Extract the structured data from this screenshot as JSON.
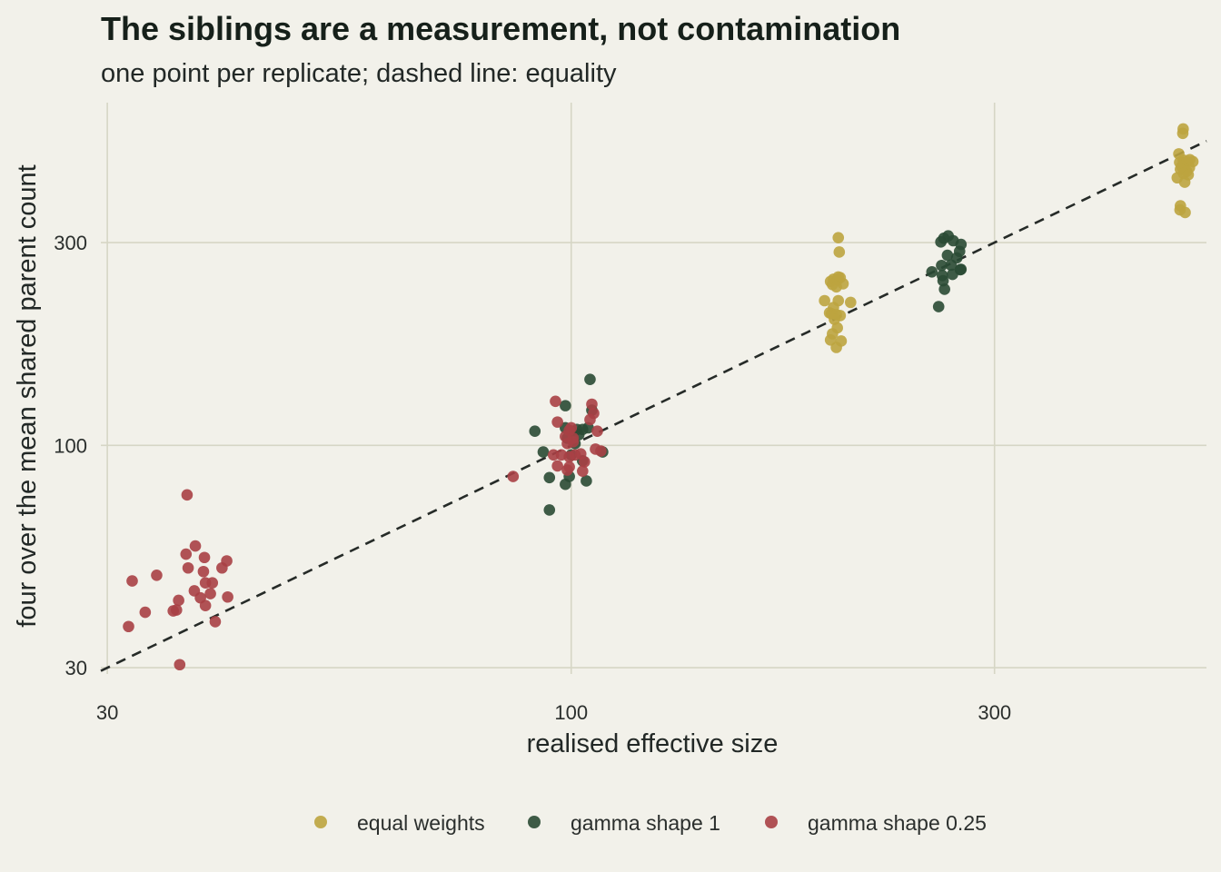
{
  "chart_data": {
    "type": "scatter",
    "title": "The siblings are a measurement, not contamination",
    "subtitle": "one point per replicate; dashed line: equality",
    "xlabel": "realised effective size",
    "ylabel": "four over the mean shared parent count",
    "x_scale": "log",
    "y_scale": "log",
    "xlim": [
      29.5,
      520
    ],
    "ylim": [
      29.0,
      640
    ],
    "x_ticks": [
      30,
      100,
      300
    ],
    "x_tick_labels": [
      "30",
      "100",
      "300"
    ],
    "y_ticks": [
      30,
      100,
      300
    ],
    "y_tick_labels": [
      "30",
      "100",
      "300"
    ],
    "grid": true,
    "legend_position": "bottom",
    "reference_line": "equality (y = x), dashed",
    "series": [
      {
        "name": "equal weights",
        "color": "#bda43f",
        "points": [
          [
            200.0,
            308.0
          ],
          [
            200.5,
            285.0
          ],
          [
            197.5,
            246.0
          ],
          [
            196.0,
            243.0
          ],
          [
            199.5,
            245.0
          ],
          [
            201.0,
            248.0
          ],
          [
            200.0,
            249.0
          ],
          [
            197.0,
            239.0
          ],
          [
            202.5,
            240.0
          ],
          [
            199.0,
            236.0
          ],
          [
            193.0,
            219.0
          ],
          [
            200.0,
            219.0
          ],
          [
            206.5,
            217.0
          ],
          [
            197.5,
            211.0
          ],
          [
            195.5,
            205.0
          ],
          [
            196.5,
            204.0
          ],
          [
            199.0,
            203.0
          ],
          [
            201.0,
            202.0
          ],
          [
            198.0,
            198.0
          ],
          [
            199.5,
            189.0
          ],
          [
            197.0,
            183.0
          ],
          [
            196.0,
            177.0
          ],
          [
            201.5,
            176.0
          ],
          [
            199.0,
            170.0
          ],
          [
            489.5,
            555.0
          ],
          [
            489.0,
            542.0
          ],
          [
            484.0,
            485.0
          ],
          [
            489.5,
            469.0
          ],
          [
            498.0,
            470.0
          ],
          [
            502.0,
            465.0
          ],
          [
            485.0,
            463.0
          ],
          [
            490.0,
            462.0
          ],
          [
            494.5,
            465.0
          ],
          [
            487.5,
            453.0
          ],
          [
            497.5,
            450.0
          ],
          [
            491.0,
            447.0
          ],
          [
            486.0,
            446.0
          ],
          [
            494.0,
            441.0
          ],
          [
            490.0,
            436.0
          ],
          [
            496.0,
            433.0
          ],
          [
            482.0,
            426.0
          ],
          [
            491.5,
            416.0
          ],
          [
            486.0,
            366.0
          ],
          [
            485.5,
            358.0
          ],
          [
            492.0,
            353.0
          ]
        ]
      },
      {
        "name": "gamma shape 1",
        "color": "#2a4a34",
        "points": [
          [
            105.0,
            143.0
          ],
          [
            98.5,
            124.0
          ],
          [
            105.5,
            121.0
          ],
          [
            91.0,
            108.0
          ],
          [
            98.5,
            110.0
          ],
          [
            101.5,
            109.0
          ],
          [
            103.0,
            109.0
          ],
          [
            104.5,
            110.0
          ],
          [
            100.0,
            108.0
          ],
          [
            102.0,
            106.0
          ],
          [
            99.0,
            104.0
          ],
          [
            101.0,
            101.0
          ],
          [
            93.0,
            96.5
          ],
          [
            108.5,
            96.5
          ],
          [
            100.0,
            95.0
          ],
          [
            103.0,
            92.0
          ],
          [
            94.5,
            84.0
          ],
          [
            99.5,
            84.5
          ],
          [
            98.5,
            81.0
          ],
          [
            104.0,
            82.5
          ],
          [
            94.5,
            70.5
          ],
          [
            266.0,
            311.0
          ],
          [
            263.0,
            307.0
          ],
          [
            269.5,
            303.0
          ],
          [
            261.0,
            301.0
          ],
          [
            275.0,
            297.0
          ],
          [
            274.0,
            286.0
          ],
          [
            265.5,
            280.0
          ],
          [
            272.0,
            276.0
          ],
          [
            268.0,
            265.5
          ],
          [
            261.5,
            265.0
          ],
          [
            275.0,
            259.5
          ],
          [
            255.0,
            256.0
          ],
          [
            262.0,
            251.0
          ],
          [
            269.0,
            252.5
          ],
          [
            274.5,
            259.0
          ],
          [
            262.5,
            244.0
          ],
          [
            263.5,
            233.0
          ],
          [
            259.5,
            212.0
          ]
        ]
      },
      {
        "name": "gamma shape 0.25",
        "color": "#a94045",
        "points": [
          [
            96.0,
            127.0
          ],
          [
            105.5,
            125.0
          ],
          [
            106.0,
            119.0
          ],
          [
            105.0,
            115.0
          ],
          [
            96.5,
            113.5
          ],
          [
            100.0,
            110.0
          ],
          [
            107.0,
            108.0
          ],
          [
            99.5,
            108.5
          ],
          [
            98.5,
            105.0
          ],
          [
            100.5,
            104.0
          ],
          [
            100.5,
            102.0
          ],
          [
            99.0,
            101.0
          ],
          [
            106.5,
            98.0
          ],
          [
            108.0,
            97.0
          ],
          [
            102.5,
            95.5
          ],
          [
            101.0,
            95.0
          ],
          [
            95.5,
            95.0
          ],
          [
            97.5,
            95.0
          ],
          [
            99.5,
            94.0
          ],
          [
            103.5,
            91.5
          ],
          [
            96.5,
            89.5
          ],
          [
            99.5,
            89.0
          ],
          [
            103.0,
            87.0
          ],
          [
            99.0,
            87.5
          ],
          [
            86.0,
            84.5
          ],
          [
            36.9,
            76.5
          ],
          [
            37.7,
            58.0
          ],
          [
            36.8,
            55.5
          ],
          [
            40.9,
            53.5
          ],
          [
            38.6,
            54.5
          ],
          [
            37.0,
            51.5
          ],
          [
            40.4,
            51.5
          ],
          [
            34.1,
            49.5
          ],
          [
            38.5,
            50.5
          ],
          [
            32.0,
            48.0
          ],
          [
            38.7,
            47.5
          ],
          [
            39.4,
            47.5
          ],
          [
            37.6,
            45.5
          ],
          [
            39.2,
            44.8
          ],
          [
            41.0,
            44.0
          ],
          [
            38.2,
            43.8
          ],
          [
            36.1,
            43.2
          ],
          [
            38.7,
            42.0
          ],
          [
            35.9,
            41.0
          ],
          [
            33.1,
            40.5
          ],
          [
            35.6,
            40.8
          ],
          [
            39.7,
            38.5
          ],
          [
            31.7,
            37.5
          ],
          [
            36.2,
            30.5
          ]
        ]
      }
    ]
  }
}
